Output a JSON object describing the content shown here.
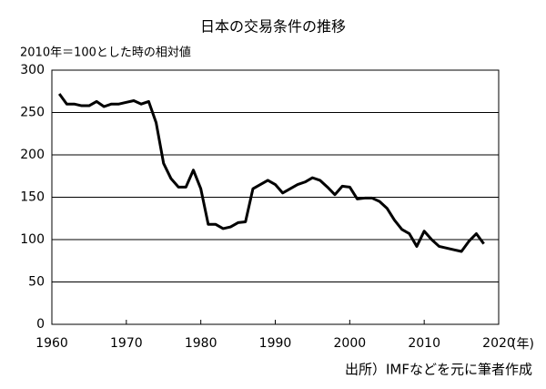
{
  "chart_data": {
    "type": "line",
    "title": "日本の交易条件の推移",
    "y_label": "2010年＝100とした時の相対値",
    "x_label": "(年)",
    "source": "出所）IMFなどを元に筆者作成",
    "x": [
      1961,
      1962,
      1963,
      1964,
      1965,
      1966,
      1967,
      1968,
      1969,
      1970,
      1971,
      1972,
      1973,
      1974,
      1975,
      1976,
      1977,
      1978,
      1979,
      1980,
      1981,
      1982,
      1983,
      1984,
      1985,
      1986,
      1987,
      1988,
      1989,
      1990,
      1991,
      1992,
      1993,
      1994,
      1995,
      1996,
      1997,
      1998,
      1999,
      2000,
      2001,
      2002,
      2003,
      2004,
      2005,
      2006,
      2007,
      2008,
      2009,
      2010,
      2011,
      2012,
      2013,
      2014,
      2015,
      2016,
      2017,
      2018
    ],
    "series": [
      {
        "color": "#000000",
        "values": [
          272,
          260,
          260,
          258,
          258,
          263,
          257,
          260,
          260,
          262,
          264,
          260,
          263,
          238,
          190,
          172,
          162,
          162,
          182,
          160,
          118,
          118,
          113,
          115,
          120,
          121,
          160,
          165,
          170,
          165,
          155,
          160,
          165,
          168,
          173,
          170,
          162,
          153,
          163,
          162,
          148,
          149,
          149,
          145,
          137,
          123,
          112,
          107,
          92,
          110,
          100,
          92,
          90,
          88,
          86,
          98,
          107,
          95
        ]
      }
    ],
    "xlim": [
      1960,
      2020
    ],
    "xticks": [
      1960,
      1970,
      1980,
      1990,
      2000,
      2010,
      2020
    ],
    "ylim": [
      0,
      300
    ],
    "yticks": [
      0,
      50,
      100,
      150,
      200,
      250,
      300
    ],
    "grid": true
  }
}
